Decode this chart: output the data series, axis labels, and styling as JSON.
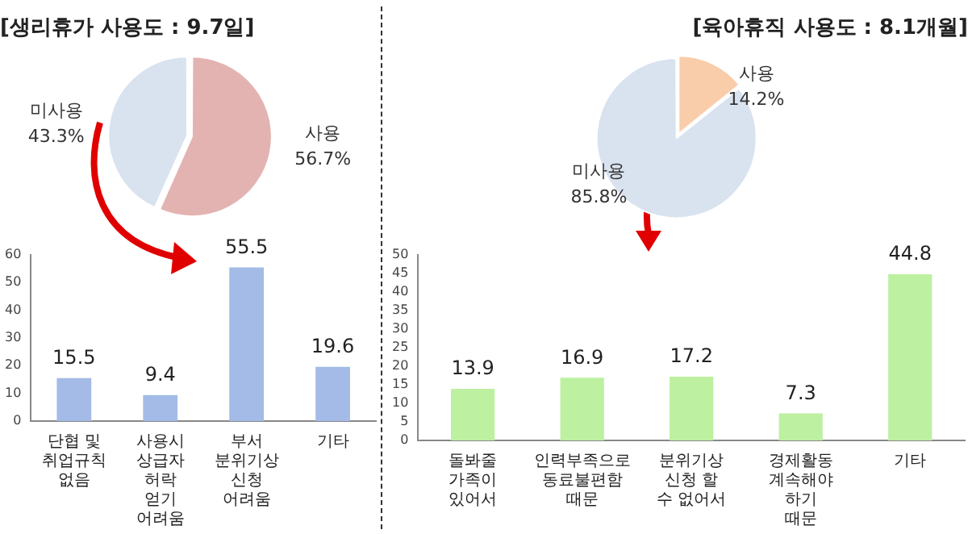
{
  "chart_data": [
    {
      "type": "pie",
      "title": "[생리휴가 사용도 : 9.7일]",
      "categories": [
        "사용",
        "미사용"
      ],
      "values": [
        56.7,
        43.3
      ],
      "colors": [
        "#e3b3b2",
        "#d9e2ef"
      ],
      "value_labels": [
        "56.7%",
        "43.3%"
      ]
    },
    {
      "type": "pie",
      "title": "[육아휴직 사용도 : 8.1개월]",
      "categories": [
        "사용",
        "미사용"
      ],
      "values": [
        14.2,
        85.8
      ],
      "colors": [
        "#f9ccaa",
        "#d9e2ef"
      ],
      "value_labels": [
        "14.2%",
        "85.8%"
      ]
    },
    {
      "type": "bar",
      "categories": [
        "단협 및\n취업규칙\n없음",
        "사용시\n상급자 허락\n얻기 어려움",
        "부서\n분위기상\n신청 어려움",
        "기타"
      ],
      "values": [
        15.5,
        9.4,
        55.5,
        19.6
      ],
      "color": "#a3bbe6",
      "ylim": [
        0,
        60
      ],
      "yticks": [
        0,
        10,
        20,
        30,
        40,
        50,
        60
      ],
      "data_labels": true,
      "grid": false
    },
    {
      "type": "bar",
      "categories": [
        "돌봐줄 가족이\n있어서",
        "인력부족으로\n동료불편함 때문",
        "분위기상 신청 할\n수 없어서",
        "경제활동\n계속해야 하기\n때문",
        "기타"
      ],
      "values": [
        13.9,
        16.9,
        17.2,
        7.3,
        44.8
      ],
      "color": "#bdf0a0",
      "ylim": [
        0,
        50
      ],
      "yticks": [
        0,
        5,
        10,
        15,
        20,
        25,
        30,
        35,
        40,
        45,
        50
      ],
      "data_labels": true,
      "grid": false
    }
  ]
}
